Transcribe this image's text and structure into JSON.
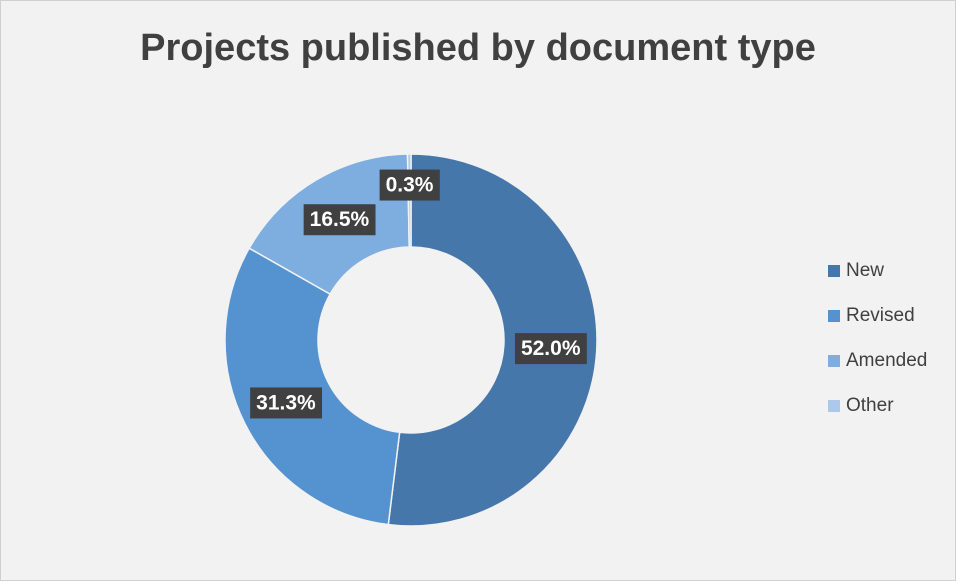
{
  "chart_data": {
    "type": "donut",
    "title": "Projects published by document type",
    "categories": [
      "New",
      "Revised",
      "Amended",
      "Other"
    ],
    "values": [
      52.0,
      31.3,
      16.5,
      0.3
    ],
    "value_labels": [
      "52.0%",
      "31.3%",
      "16.5%",
      "0.3%"
    ],
    "colors": [
      "#4677ab",
      "#5592d0",
      "#7eaedf",
      "#abc9ea"
    ],
    "legend": "right"
  }
}
